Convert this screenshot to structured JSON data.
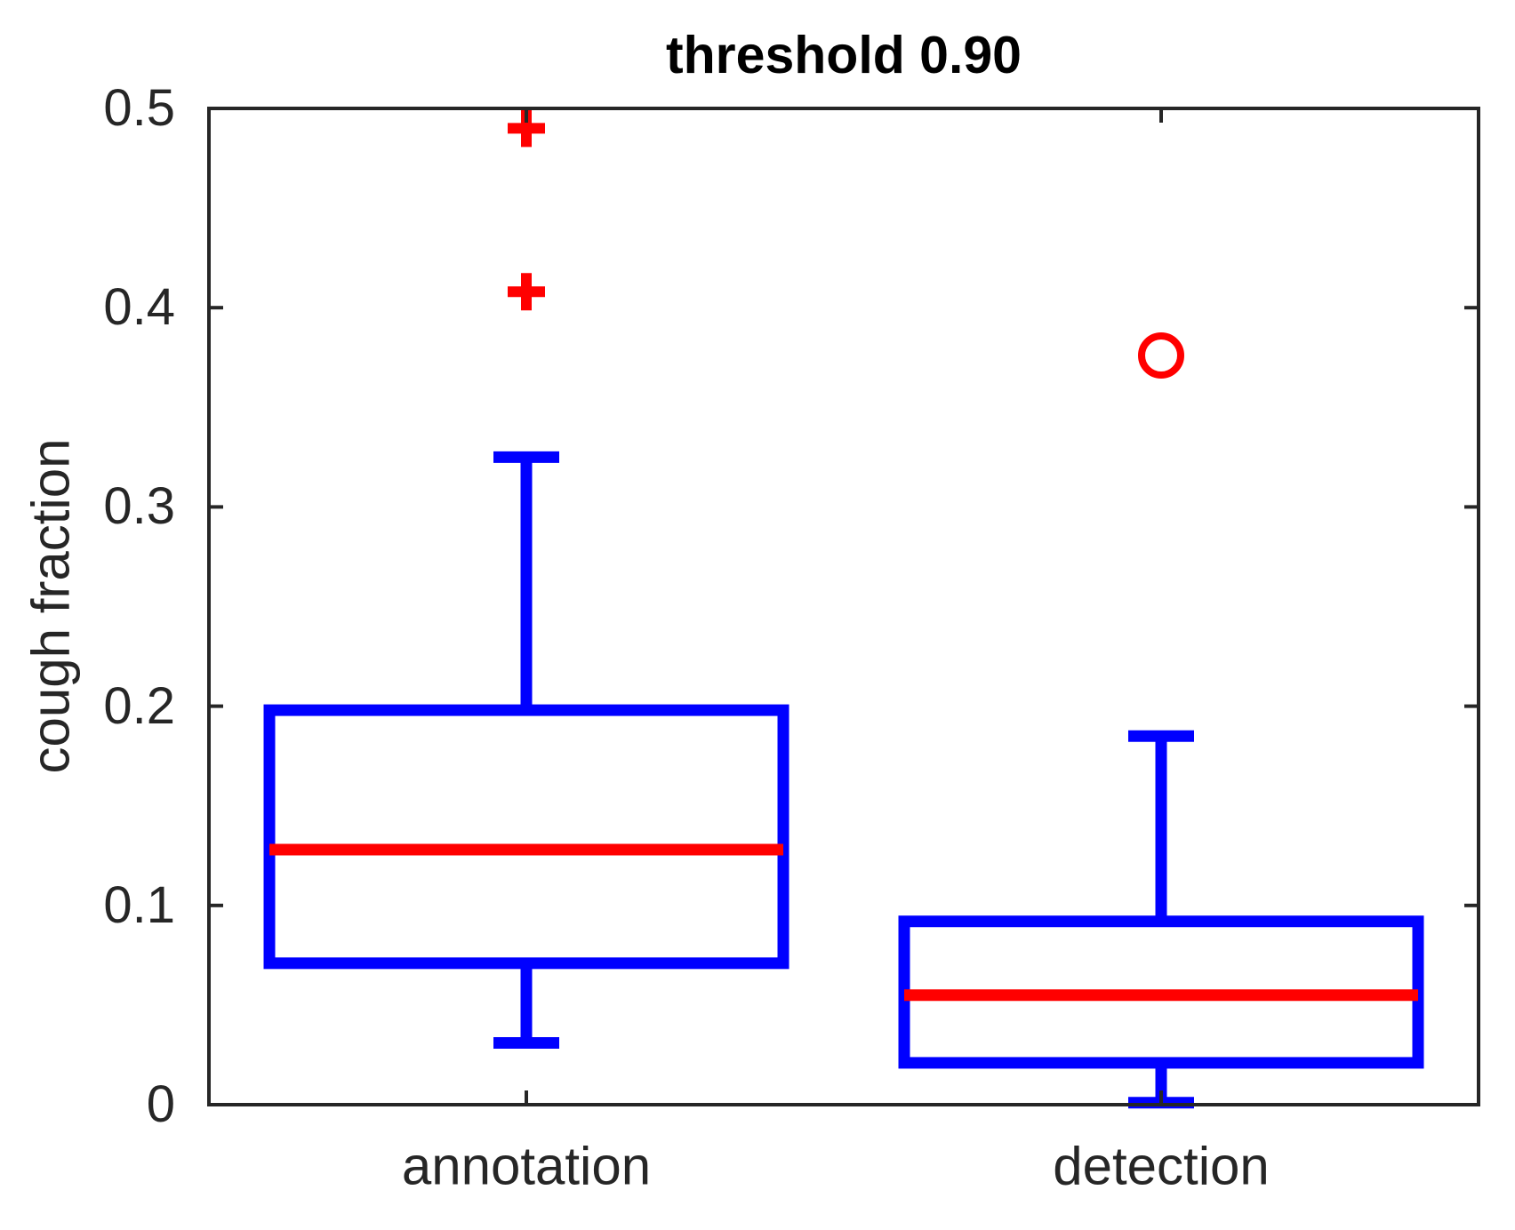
{
  "chart_data": {
    "type": "boxplot",
    "title": "threshold 0.90",
    "ylabel": "cough fraction",
    "xlabel": "",
    "categories": [
      "annotation",
      "detection"
    ],
    "ylim": [
      0,
      0.5
    ],
    "yticks": [
      0,
      0.1,
      0.2,
      0.3,
      0.4,
      0.5
    ],
    "ytick_labels": [
      "0",
      "0.1",
      "0.2",
      "0.3",
      "0.4",
      "0.5"
    ],
    "grid": false,
    "legend_position": "none",
    "series": [
      {
        "name": "annotation",
        "whisker_low": 0.031,
        "q1": 0.071,
        "median": 0.128,
        "q3": 0.198,
        "whisker_high": 0.325,
        "outliers": [
          0.408,
          0.49
        ],
        "outlier_marker": "plus"
      },
      {
        "name": "detection",
        "whisker_low": 0.001,
        "q1": 0.021,
        "median": 0.055,
        "q3": 0.092,
        "whisker_high": 0.185,
        "outliers": [
          0.376
        ],
        "outlier_marker": "circle"
      }
    ],
    "colors": {
      "box": "#0000ff",
      "median": "#ff0000",
      "outlier": "#ff0000",
      "axis": "#262626",
      "text": "#262626",
      "title": "#000000"
    }
  }
}
